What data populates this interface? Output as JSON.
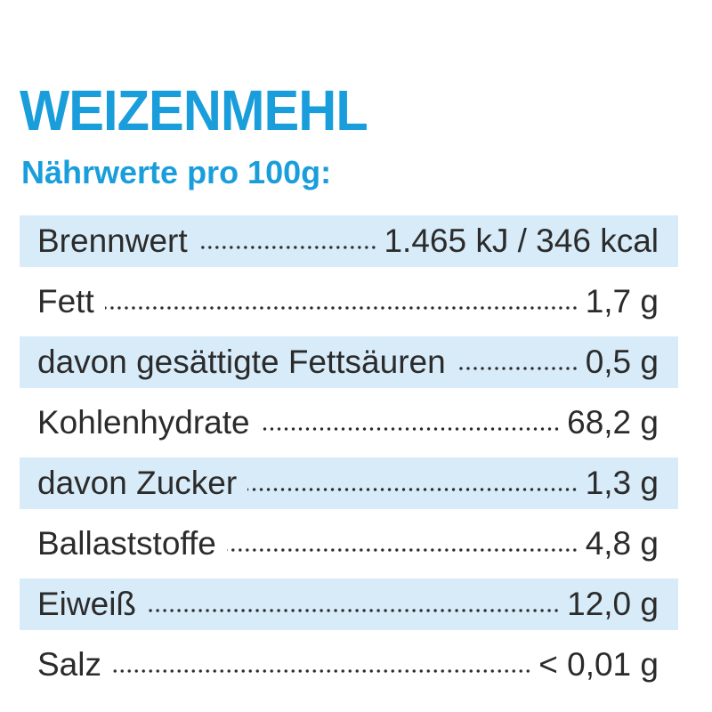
{
  "header": {
    "title": "WEIZENMEHL",
    "subtitle": "Nährwerte pro 100g:"
  },
  "table": {
    "rows": [
      [
        "Brennwert",
        "1.465 kJ / 346 kcal"
      ],
      [
        "Fett",
        "1,7 g"
      ],
      [
        "davon gesättigte Fettsäuren",
        "0,5 g"
      ],
      [
        "Kohlenhydrate",
        "68,2 g"
      ],
      [
        "davon Zucker",
        "1,3 g"
      ],
      [
        "Ballaststoffe",
        "4,8 g"
      ],
      [
        "Eiweiß",
        "12,0 g"
      ],
      [
        "Salz",
        "< 0,01 g"
      ]
    ]
  }
}
